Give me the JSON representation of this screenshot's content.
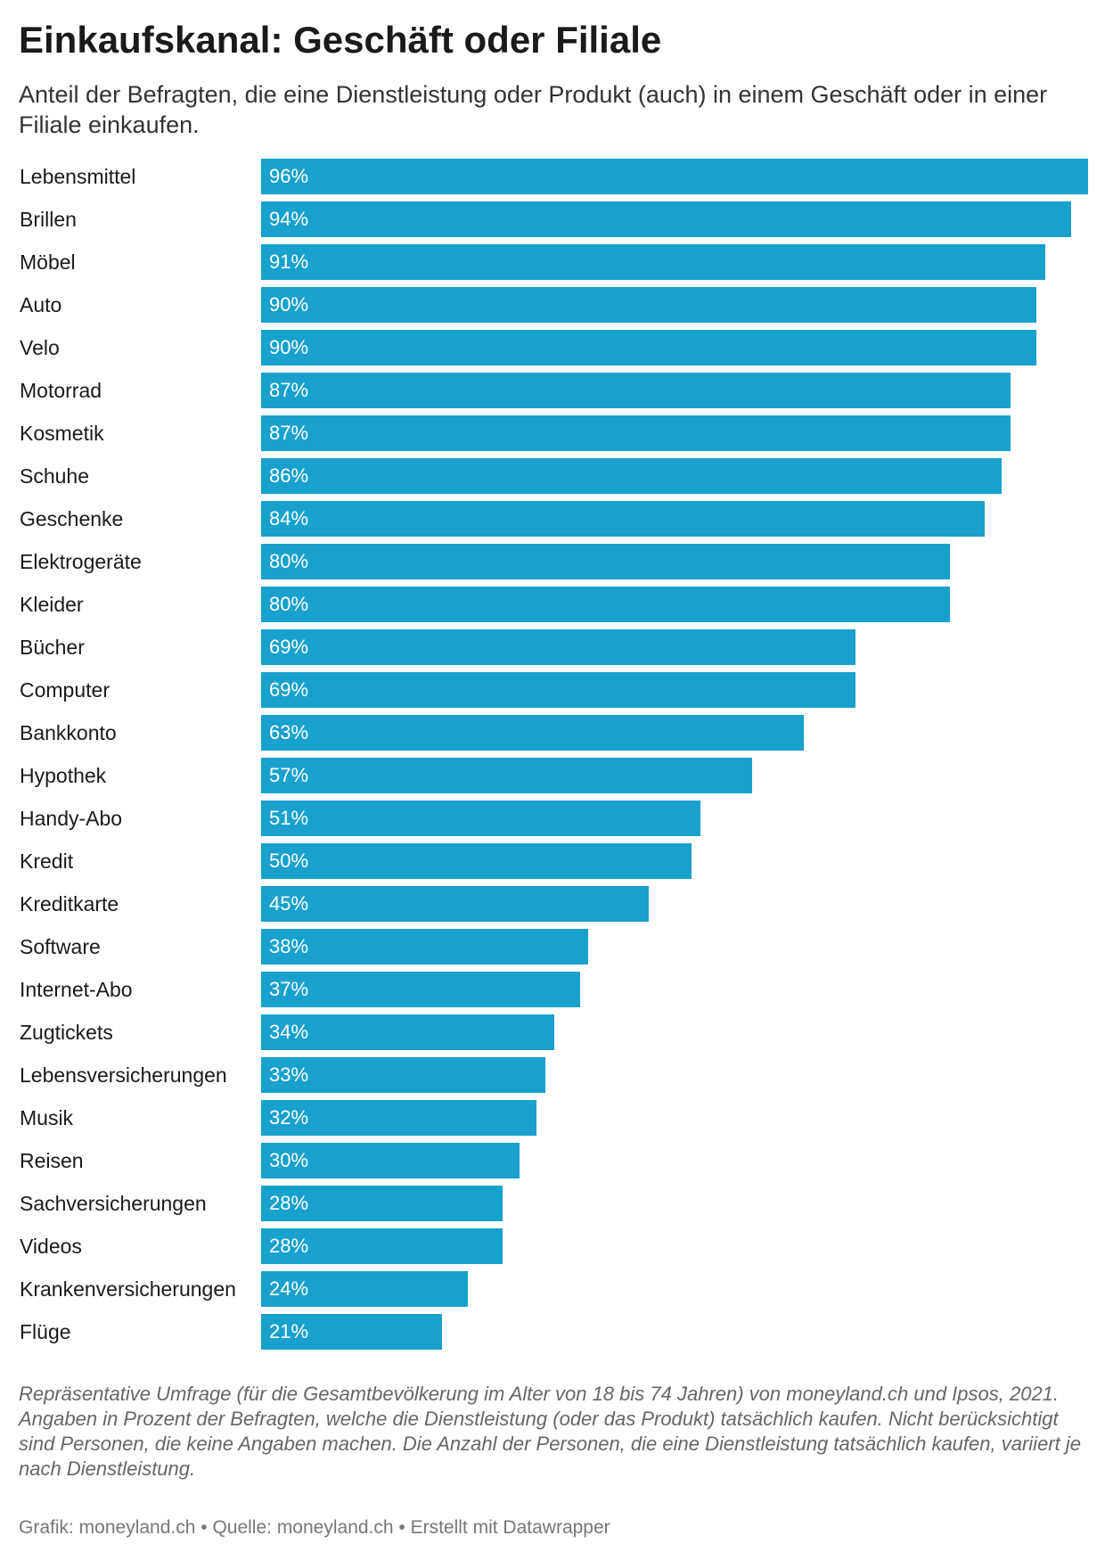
{
  "header": {
    "title": "Einkaufskanal: Geschäft oder Filiale",
    "subtitle": "Anteil der Befragten, die eine Dienstleistung oder Produkt (auch) in einem Geschäft oder in einer Filiale einkaufen."
  },
  "chart_data": {
    "type": "bar",
    "orientation": "horizontal",
    "title": "Einkaufskanal: Geschäft oder Filiale",
    "subtitle": "Anteil der Befragten, die eine Dienstleistung oder Produkt (auch) in einem Geschäft oder in einer Filiale einkaufen.",
    "unit": "%",
    "bar_color": "#18a1cd",
    "value_label_color": "#ffffff",
    "xlim": [
      0,
      96
    ],
    "grid": false,
    "categories": [
      "Lebensmittel",
      "Brillen",
      "Möbel",
      "Auto",
      "Velo",
      "Motorrad",
      "Kosmetik",
      "Schuhe",
      "Geschenke",
      "Elektrogeräte",
      "Kleider",
      "Bücher",
      "Computer",
      "Bankkonto",
      "Hypothek",
      "Handy-Abo",
      "Kredit",
      "Kreditkarte",
      "Software",
      "Internet-Abo",
      "Zugtickets",
      "Lebensversicherungen",
      "Musik",
      "Reisen",
      "Sachversicherungen",
      "Videos",
      "Krankenversicherungen",
      "Flüge"
    ],
    "values": [
      96,
      94,
      91,
      90,
      90,
      87,
      87,
      86,
      84,
      80,
      80,
      69,
      69,
      63,
      57,
      51,
      50,
      45,
      38,
      37,
      34,
      33,
      32,
      30,
      28,
      28,
      24,
      21
    ],
    "value_labels": [
      "96%",
      "94%",
      "91%",
      "90%",
      "90%",
      "87%",
      "87%",
      "86%",
      "84%",
      "80%",
      "80%",
      "69%",
      "69%",
      "63%",
      "57%",
      "51%",
      "50%",
      "45%",
      "38%",
      "37%",
      "34%",
      "33%",
      "32%",
      "30%",
      "28%",
      "28%",
      "24%",
      "21%"
    ]
  },
  "notes": {
    "line1": "Repräsentative Umfrage (für die Gesamtbevölkerung im Alter von 18 bis 74 Jahren) von moneyland.ch und Ipsos, 2021.",
    "line2": "Angaben in Prozent der Befragten, welche die Dienstleistung (oder das Produkt) tatsächlich kaufen. Nicht berücksichtigt sind Personen, die keine Angaben machen. Die Anzahl der Personen, die eine Dienstleistung tatsächlich kaufen, variiert je nach Dienstleistung."
  },
  "footer": {
    "credits": "Grafik: moneyland.ch • Quelle: moneyland.ch • Erstellt mit Datawrapper"
  }
}
